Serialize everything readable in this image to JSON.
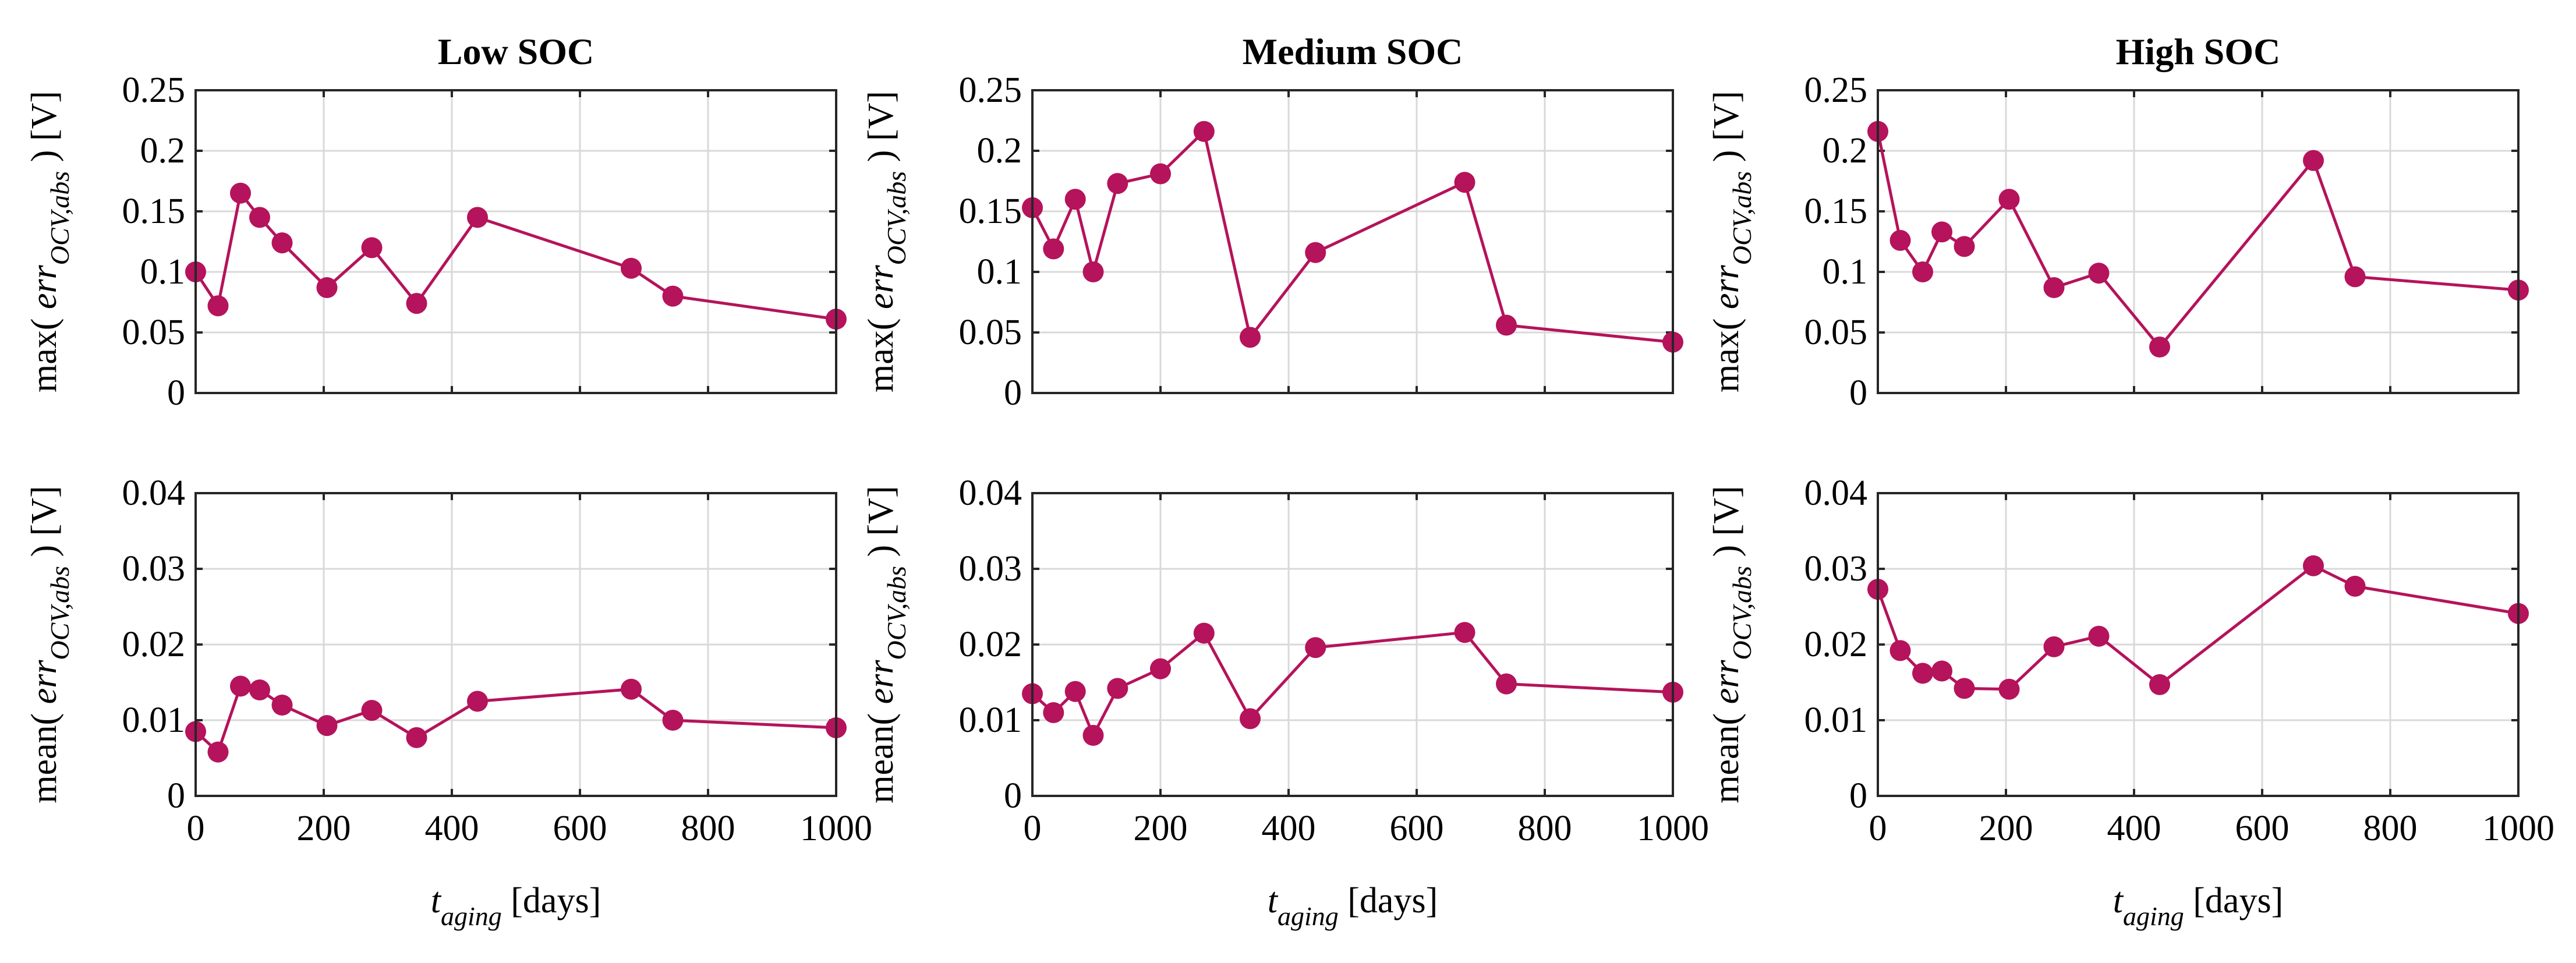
{
  "colors": {
    "series": "#b5135b"
  },
  "x_axis_label": {
    "var": "t",
    "sub": "aging",
    "unit": " [days]"
  },
  "y_axis_labels": {
    "max": {
      "func": "max(",
      "var": "err",
      "sub": "OCV,abs",
      "close": ")",
      "unit": " [V]"
    },
    "mean": {
      "func": "mean(",
      "var": "err",
      "sub": "OCV,abs",
      "close": ")",
      "unit": " [V]"
    }
  },
  "chart_data": [
    {
      "id": "low-max",
      "type": "line",
      "title": "Low SOC",
      "metric": "max",
      "x": [
        0,
        35,
        70,
        100,
        135,
        205,
        275,
        345,
        440,
        680,
        745,
        1000
      ],
      "y": [
        0.1,
        0.072,
        0.165,
        0.145,
        0.124,
        0.087,
        0.12,
        0.074,
        0.145,
        0.103,
        0.08,
        0.061
      ],
      "xlim": [
        0,
        1000
      ],
      "ylim": [
        0,
        0.25
      ],
      "xticks": [
        0,
        200,
        400,
        600,
        800,
        1000
      ],
      "yticks": [
        0,
        0.05,
        0.1,
        0.15,
        0.2,
        0.25
      ],
      "ytick_labels": [
        "0",
        "0.05",
        "0.1",
        "0.15",
        "0.2",
        "0.25"
      ],
      "grid": true
    },
    {
      "id": "med-max",
      "type": "line",
      "title": "Medium SOC",
      "metric": "max",
      "x": [
        0,
        33,
        67,
        95,
        133,
        200,
        268,
        340,
        442,
        675,
        740,
        1000
      ],
      "y": [
        0.153,
        0.119,
        0.16,
        0.1,
        0.173,
        0.181,
        0.216,
        0.046,
        0.116,
        0.174,
        0.056,
        0.042
      ],
      "xlim": [
        0,
        1000
      ],
      "ylim": [
        0,
        0.25
      ],
      "xticks": [
        0,
        200,
        400,
        600,
        800,
        1000
      ],
      "yticks": [
        0,
        0.05,
        0.1,
        0.15,
        0.2,
        0.25
      ],
      "ytick_labels": [
        "0",
        "0.05",
        "0.1",
        "0.15",
        "0.2",
        "0.25"
      ],
      "grid": true
    },
    {
      "id": "high-max",
      "type": "line",
      "title": "High SOC",
      "metric": "max",
      "x": [
        0,
        35,
        70,
        100,
        135,
        205,
        275,
        345,
        440,
        680,
        745,
        1000
      ],
      "y": [
        0.216,
        0.126,
        0.1,
        0.133,
        0.121,
        0.16,
        0.087,
        0.099,
        0.038,
        0.192,
        0.096,
        0.085
      ],
      "xlim": [
        0,
        1000
      ],
      "ylim": [
        0,
        0.25
      ],
      "xticks": [
        0,
        200,
        400,
        600,
        800,
        1000
      ],
      "yticks": [
        0,
        0.05,
        0.1,
        0.15,
        0.2,
        0.25
      ],
      "ytick_labels": [
        "0",
        "0.05",
        "0.1",
        "0.15",
        "0.2",
        "0.25"
      ],
      "grid": true
    },
    {
      "id": "low-mean",
      "type": "line",
      "title": "",
      "metric": "mean",
      "x": [
        0,
        35,
        70,
        100,
        135,
        205,
        275,
        345,
        440,
        680,
        745,
        1000
      ],
      "y": [
        0.0085,
        0.0058,
        0.0145,
        0.014,
        0.012,
        0.0093,
        0.0113,
        0.0077,
        0.0125,
        0.0141,
        0.01,
        0.009
      ],
      "xlim": [
        0,
        1000
      ],
      "ylim": [
        0,
        0.04
      ],
      "xticks": [
        0,
        200,
        400,
        600,
        800,
        1000
      ],
      "yticks": [
        0,
        0.01,
        0.02,
        0.03,
        0.04
      ],
      "ytick_labels": [
        "0",
        "0.01",
        "0.02",
        "0.03",
        "0.04"
      ],
      "grid": true
    },
    {
      "id": "med-mean",
      "type": "line",
      "title": "",
      "metric": "mean",
      "x": [
        0,
        33,
        67,
        95,
        133,
        200,
        268,
        340,
        442,
        675,
        740,
        1000
      ],
      "y": [
        0.0135,
        0.011,
        0.0138,
        0.008,
        0.0142,
        0.0168,
        0.0215,
        0.0102,
        0.0196,
        0.0216,
        0.0148,
        0.0137
      ],
      "xlim": [
        0,
        1000
      ],
      "ylim": [
        0,
        0.04
      ],
      "xticks": [
        0,
        200,
        400,
        600,
        800,
        1000
      ],
      "yticks": [
        0,
        0.01,
        0.02,
        0.03,
        0.04
      ],
      "ytick_labels": [
        "0",
        "0.01",
        "0.02",
        "0.03",
        "0.04"
      ],
      "grid": true
    },
    {
      "id": "high-mean",
      "type": "line",
      "title": "",
      "metric": "mean",
      "x": [
        0,
        35,
        70,
        100,
        135,
        205,
        275,
        345,
        440,
        680,
        745,
        1000
      ],
      "y": [
        0.0273,
        0.0192,
        0.0162,
        0.0165,
        0.0142,
        0.0141,
        0.0197,
        0.0211,
        0.0147,
        0.0304,
        0.0277,
        0.0241
      ],
      "xlim": [
        0,
        1000
      ],
      "ylim": [
        0,
        0.04
      ],
      "xticks": [
        0,
        200,
        400,
        600,
        800,
        1000
      ],
      "yticks": [
        0,
        0.01,
        0.02,
        0.03,
        0.04
      ],
      "ytick_labels": [
        "0",
        "0.01",
        "0.02",
        "0.03",
        "0.04"
      ],
      "grid": true
    }
  ]
}
